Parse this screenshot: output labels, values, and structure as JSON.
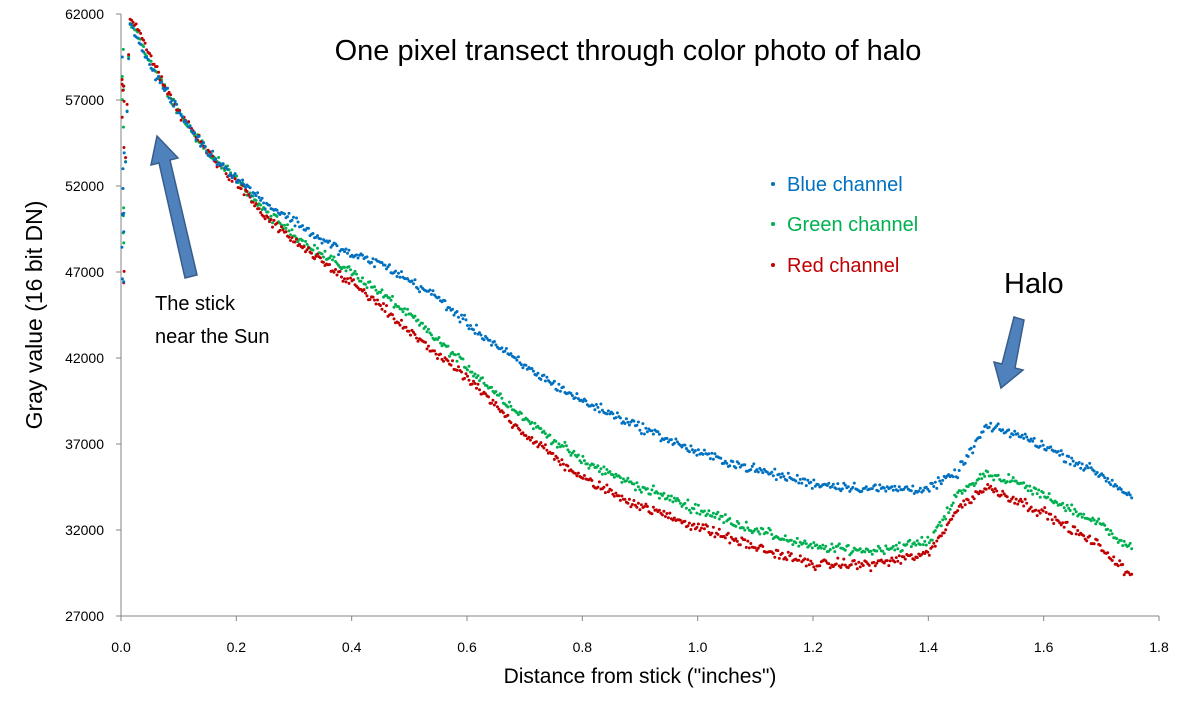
{
  "chart_data": {
    "type": "scatter",
    "title": "One pixel transect through color photo of halo",
    "xlabel": "Distance from stick (\"inches\")",
    "ylabel": "Gray  value (16 bit DN)",
    "xlim": [
      0,
      1.8
    ],
    "ylim": [
      27000,
      62000
    ],
    "x_ticks": [
      0,
      0.2,
      0.4,
      0.6,
      0.8,
      1.0,
      1.2,
      1.4,
      1.6,
      1.8
    ],
    "x_tick_labels": [
      "0.0",
      "0.2",
      "0.4",
      "0.6",
      "0.8",
      "1.0",
      "1.2",
      "1.4",
      "1.6",
      "1.8"
    ],
    "y_ticks": [
      27000,
      32000,
      37000,
      42000,
      47000,
      52000,
      57000,
      62000
    ],
    "y_tick_labels": [
      "27000",
      "32000",
      "37000",
      "42000",
      "47000",
      "52000",
      "57000",
      "62000"
    ],
    "legend_position": "upper-right",
    "series": [
      {
        "name": "Blue channel",
        "color": "#0070C0",
        "x": [
          0.005,
          0.015,
          0.03,
          0.05,
          0.1,
          0.15,
          0.2,
          0.25,
          0.3,
          0.35,
          0.4,
          0.45,
          0.5,
          0.55,
          0.6,
          0.7,
          0.8,
          0.9,
          1.0,
          1.1,
          1.2,
          1.3,
          1.4,
          1.45,
          1.5,
          1.55,
          1.6,
          1.7,
          1.75
        ],
        "y": [
          50000,
          61500,
          60500,
          59000,
          56300,
          54000,
          52500,
          51000,
          50000,
          48800,
          48000,
          47500,
          46500,
          45500,
          44000,
          41500,
          39500,
          38000,
          36500,
          35500,
          34700,
          34400,
          34400,
          35300,
          38000,
          37600,
          36900,
          35200,
          34000
        ]
      },
      {
        "name": "Green channel",
        "color": "#00B050",
        "x": [
          0.005,
          0.015,
          0.03,
          0.05,
          0.1,
          0.15,
          0.2,
          0.25,
          0.3,
          0.35,
          0.4,
          0.45,
          0.5,
          0.55,
          0.6,
          0.7,
          0.8,
          0.9,
          1.0,
          1.1,
          1.2,
          1.3,
          1.4,
          1.45,
          1.5,
          1.55,
          1.6,
          1.7,
          1.75
        ],
        "y": [
          50000,
          61500,
          60800,
          59200,
          56300,
          54000,
          52400,
          50500,
          49200,
          48000,
          47000,
          45800,
          44500,
          43000,
          41500,
          38500,
          36000,
          34500,
          33200,
          32000,
          31000,
          30800,
          31300,
          34000,
          35300,
          34800,
          34000,
          32300,
          31000
        ]
      },
      {
        "name": "Red channel",
        "color": "#C00000",
        "x": [
          0.005,
          0.015,
          0.03,
          0.05,
          0.1,
          0.15,
          0.2,
          0.25,
          0.3,
          0.35,
          0.4,
          0.45,
          0.5,
          0.55,
          0.6,
          0.7,
          0.8,
          0.9,
          1.0,
          1.1,
          1.2,
          1.3,
          1.4,
          1.45,
          1.5,
          1.55,
          1.6,
          1.7,
          1.75
        ],
        "y": [
          50000,
          61800,
          61200,
          59500,
          56300,
          54000,
          52200,
          50200,
          48800,
          47500,
          46400,
          45000,
          43500,
          42200,
          40800,
          37600,
          35000,
          33400,
          32200,
          31000,
          30000,
          30000,
          30600,
          33200,
          34500,
          33800,
          33000,
          31000,
          29300
        ]
      }
    ],
    "annotations": [
      {
        "id": "stick",
        "lines": [
          "The stick",
          "near the Sun"
        ],
        "arrow_target": [
          0.06,
          57000
        ]
      },
      {
        "id": "halo",
        "lines": [
          "Halo"
        ],
        "arrow_target": [
          1.52,
          39300
        ]
      }
    ]
  }
}
